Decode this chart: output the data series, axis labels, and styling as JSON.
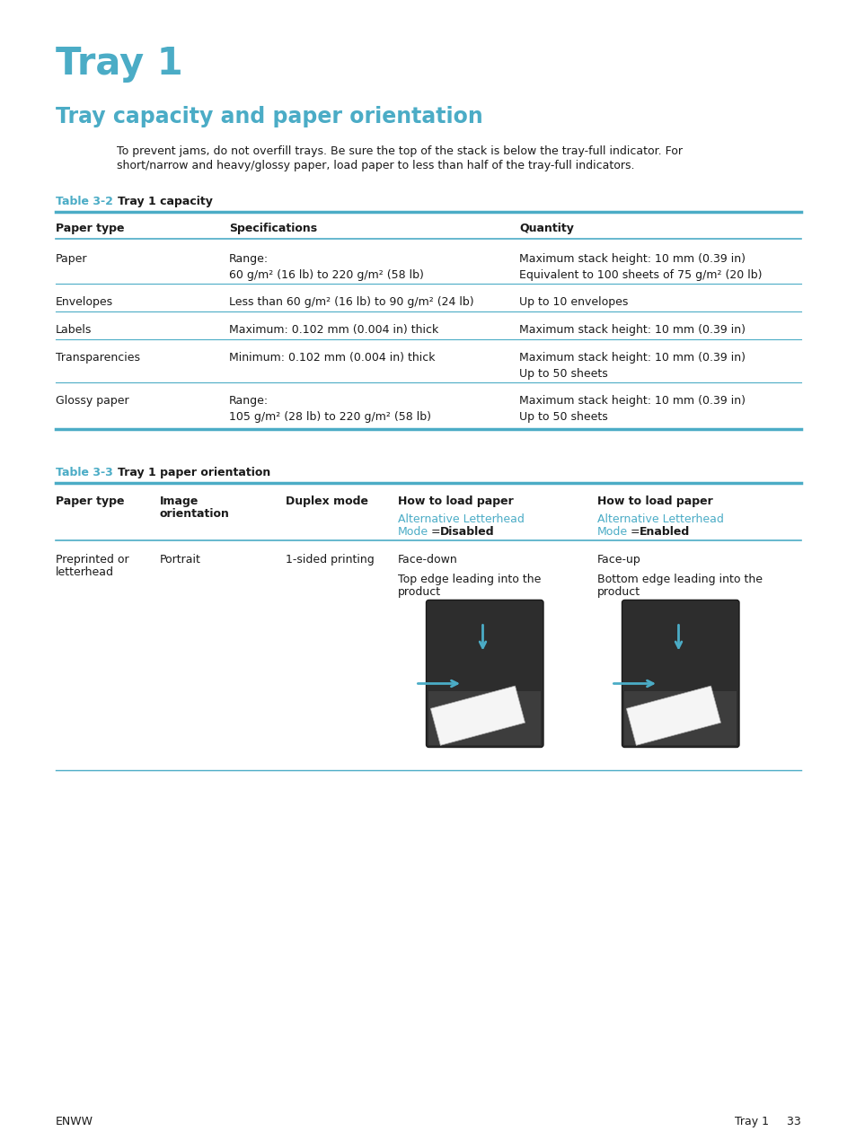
{
  "bg_color": "#ffffff",
  "title": "Tray 1",
  "title_color": "#4BACC6",
  "subtitle": "Tray capacity and paper orientation",
  "subtitle_color": "#4BACC6",
  "body_line1": "To prevent jams, do not overfill trays. Be sure the top of the stack is below the tray-full indicator. For",
  "body_line2": "short/narrow and heavy/glossy paper, load paper to less than half of the tray-full indicators.",
  "accent_color": "#4BACC6",
  "text_color": "#1a1a1a",
  "footer_left": "ENWW",
  "footer_right": "Tray 1     33"
}
